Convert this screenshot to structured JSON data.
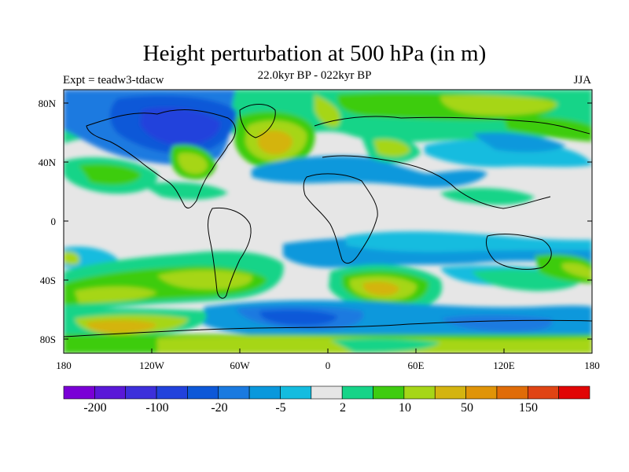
{
  "title": "Height perturbation at 500 hPa (in m)",
  "subtitle": "22.0kyr BP - 022kyr BP",
  "left_label": "Expt = teadw3-tdacw",
  "right_label": "JJA",
  "y_ticks": [
    "80N",
    "40N",
    "0",
    "40S",
    "80S"
  ],
  "x_ticks": [
    "180",
    "120W",
    "60W",
    "0",
    "60E",
    "120E",
    "180"
  ],
  "colorbar": {
    "colors": [
      "#7a00d6",
      "#5a18d8",
      "#3d2fdb",
      "#2242dc",
      "#0d58d8",
      "#1a7ae0",
      "#0a98dc",
      "#14bcdf",
      "#e6e6e6",
      "#16d488",
      "#3ecc10",
      "#a6d618",
      "#d4b410",
      "#e09408",
      "#e06c08",
      "#e04414",
      "#e10606"
    ],
    "labels": [
      "-200",
      "-100",
      "-20",
      "-5",
      "2",
      "10",
      "50",
      "150"
    ]
  },
  "chart_data": {
    "type": "heatmap",
    "variable": "500 hPa geopotential height perturbation (m)",
    "lon_range": [
      -180,
      180
    ],
    "lat_range": [
      -90,
      90
    ],
    "colorbar_boundaries": [
      -200,
      -100,
      -20,
      -5,
      2,
      10,
      50,
      150
    ],
    "regions": [
      {
        "name": "North America high-latitude low",
        "value_class": "-100 to -20"
      },
      {
        "name": "North Atlantic high",
        "value_class": "10 to 50"
      },
      {
        "name": "Southern Ocean band",
        "value_class": "-20 to -5"
      },
      {
        "name": "South Atlantic / Indian high",
        "value_class": "10 to 50"
      },
      {
        "name": "Antarctic coastal band",
        "value_class": "50 to 150"
      }
    ]
  }
}
